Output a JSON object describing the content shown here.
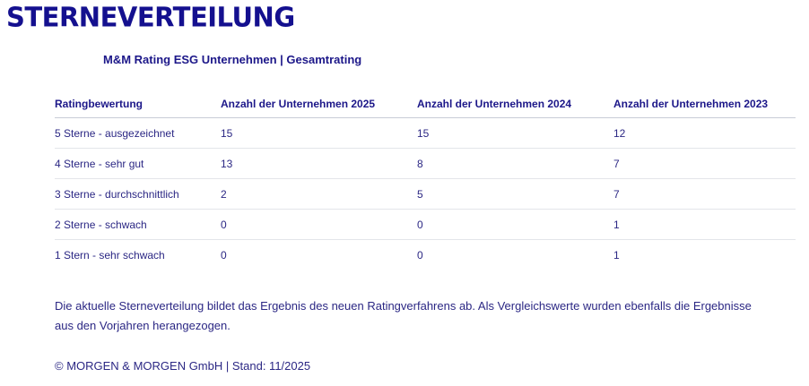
{
  "title": "STERNEVERTEILUNG",
  "subtitle": "M&M Rating ESG Unternehmen | Gesamtrating",
  "table": {
    "headers": [
      "Ratingbewertung",
      "Anzahl der Unternehmen 2025",
      "Anzahl der Unternehmen 2024",
      "Anzahl der Unternehmen 2023"
    ],
    "rows": [
      [
        "5 Sterne - ausgezeichnet",
        "15",
        "15",
        "12"
      ],
      [
        "4 Sterne - sehr gut",
        "13",
        "8",
        "7"
      ],
      [
        "3 Sterne - durchschnittlich",
        "2",
        "5",
        "7"
      ],
      [
        "2 Sterne - schwach",
        "0",
        "0",
        "1"
      ],
      [
        "1 Stern - sehr schwach",
        "0",
        "0",
        "1"
      ]
    ]
  },
  "description": "Die aktuelle Sterneverteilung bildet das Ergebnis des neuen Ratingverfahrens ab. Als Vergleichswerte wurden ebenfalls die Ergebnisse aus den Vorjahren herangezogen.",
  "footer": "© MORGEN & MORGEN GmbH | Stand: 11/2025",
  "colors": {
    "title": "#14108f",
    "text": "#2b2784"
  }
}
